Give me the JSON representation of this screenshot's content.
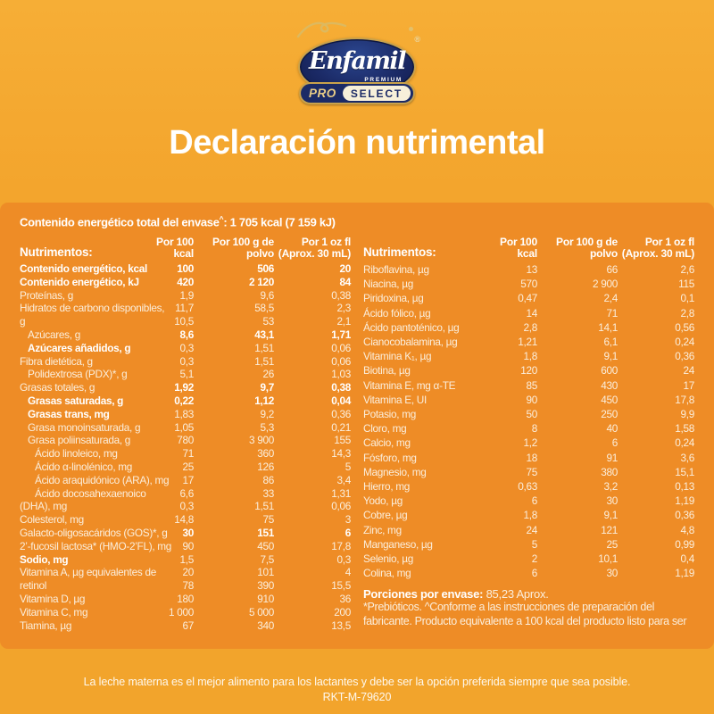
{
  "brand": {
    "name": "Enfamil",
    "registered": "®",
    "premium": "PREMIUM",
    "pro": "PRO",
    "select": "SELECT"
  },
  "title": "Declaración nutrimental",
  "energy": {
    "label": "Contenido energético total del envase",
    "sup": "^",
    "value": ": 1 705 kcal (7 159 kJ)"
  },
  "headers": {
    "nutrients": "Nutrimentos:",
    "col1": "Por 100 kcal",
    "col2_lines": [
      "Por 100 g de",
      "polvo"
    ],
    "col3_lines": [
      "Por 1 oz fl",
      "(Aprox. 30 mL)"
    ]
  },
  "left_table": {
    "rows": [
      {
        "label": "Contenido energético, kcal",
        "indent": 0,
        "bold_label": true,
        "bold_values": true,
        "values": [
          "100",
          "506",
          "20"
        ]
      },
      {
        "label": "Contenido energético, kJ",
        "indent": 0,
        "bold_label": true,
        "bold_values": true,
        "values": [
          "420",
          "2 120",
          "84"
        ]
      },
      {
        "label": "Proteínas, g",
        "indent": 0,
        "bold_label": false,
        "bold_values": false,
        "values": [
          "1,9",
          "9,6",
          "0,38"
        ]
      },
      {
        "label": "Hidratos de carbono disponibles,",
        "indent": 0,
        "bold_label": false,
        "bold_values": false,
        "values": [
          "11,7",
          "58,5",
          "2,3"
        ]
      },
      {
        "label": "g",
        "indent": 0,
        "bold_label": false,
        "bold_values": false,
        "values": [
          "10,5",
          "53",
          "2,1"
        ]
      },
      {
        "label": "Azúcares, g",
        "indent": 1,
        "bold_label": false,
        "bold_values": true,
        "values": [
          "8,6",
          "43,1",
          "1,71"
        ]
      },
      {
        "label": "Azúcares añadidos, g",
        "indent": 1,
        "bold_label": true,
        "bold_values": false,
        "values": [
          "0,3",
          "1,51",
          "0,06"
        ]
      },
      {
        "label": "Fibra dietética, g",
        "indent": 0,
        "bold_label": false,
        "bold_values": false,
        "values": [
          "0,3",
          "1,51",
          "0,06"
        ]
      },
      {
        "label": "Polidextrosa (PDX)*, g",
        "indent": 1,
        "bold_label": false,
        "bold_values": false,
        "values": [
          "5,1",
          "26",
          "1,03"
        ]
      },
      {
        "label": "Grasas totales, g",
        "indent": 0,
        "bold_label": false,
        "bold_values": true,
        "values": [
          "1,92",
          "9,7",
          "0,38"
        ]
      },
      {
        "label": "Grasas saturadas, g",
        "indent": 1,
        "bold_label": true,
        "bold_values": true,
        "values": [
          "0,22",
          "1,12",
          "0,04"
        ]
      },
      {
        "label": "Grasas trans, mg",
        "indent": 1,
        "bold_label": true,
        "bold_values": false,
        "values": [
          "1,83",
          "9,2",
          "0,36"
        ]
      },
      {
        "label": "Grasa monoinsaturada, g",
        "indent": 1,
        "bold_label": false,
        "bold_values": false,
        "values": [
          "1,05",
          "5,3",
          "0,21"
        ]
      },
      {
        "label": "Grasa poliinsaturada, g",
        "indent": 1,
        "bold_label": false,
        "bold_values": false,
        "values": [
          "780",
          "3 900",
          "155"
        ]
      },
      {
        "label": "Ácido linoleico, mg",
        "indent": 2,
        "bold_label": false,
        "bold_values": false,
        "values": [
          "71",
          "360",
          "14,3"
        ]
      },
      {
        "label": "Ácido α-linolénico, mg",
        "indent": 2,
        "bold_label": false,
        "bold_values": false,
        "values": [
          "25",
          "126",
          "5"
        ]
      },
      {
        "label": "Ácido araquidónico (ARA), mg",
        "indent": 2,
        "bold_label": false,
        "bold_values": false,
        "values": [
          "17",
          "86",
          "3,4"
        ]
      },
      {
        "label": "Ácido docosahexaenoico",
        "indent": 2,
        "bold_label": false,
        "bold_values": false,
        "values": [
          "6,6",
          "33",
          "1,31"
        ]
      },
      {
        "label": "(DHA), mg",
        "indent": 0,
        "bold_label": false,
        "bold_values": false,
        "values": [
          "0,3",
          "1,51",
          "0,06"
        ]
      },
      {
        "label": "Colesterol, mg",
        "indent": 0,
        "bold_label": false,
        "bold_values": false,
        "values": [
          "14,8",
          "75",
          "3"
        ]
      },
      {
        "label": "Galacto-oligosacáridos (GOS)*, g",
        "indent": 0,
        "bold_label": false,
        "bold_values": true,
        "values": [
          "30",
          "151",
          "6"
        ]
      },
      {
        "label": "2’-fucosil lactosa* (HMO-2’FL), mg",
        "indent": 0,
        "bold_label": false,
        "bold_values": false,
        "values": [
          "90",
          "450",
          "17,8"
        ]
      },
      {
        "label": "Sodio, mg",
        "indent": 0,
        "bold_label": true,
        "bold_values": false,
        "values": [
          "1,5",
          "7,5",
          "0,3"
        ]
      },
      {
        "label": "Vitamina A, µg equivalentes de",
        "indent": 0,
        "bold_label": false,
        "bold_values": false,
        "values": [
          "20",
          "101",
          "4"
        ]
      },
      {
        "label": "retinol",
        "indent": 0,
        "bold_label": false,
        "bold_values": false,
        "values": [
          "78",
          "390",
          "15,5"
        ]
      },
      {
        "label": "Vitamina D, µg",
        "indent": 0,
        "bold_label": false,
        "bold_values": false,
        "values": [
          "180",
          "910",
          "36"
        ]
      },
      {
        "label": "Vitamina C, mg",
        "indent": 0,
        "bold_label": false,
        "bold_values": false,
        "values": [
          "1 000",
          "5 000",
          "200"
        ]
      },
      {
        "label": "Tiamina, µg",
        "indent": 0,
        "bold_label": false,
        "bold_values": false,
        "values": [
          "67",
          "340",
          "13,5"
        ]
      }
    ]
  },
  "right_table": {
    "rows": [
      {
        "label": "Riboflavina, µg",
        "indent": 0,
        "bold_label": false,
        "bold_values": false,
        "values": [
          "13",
          "66",
          "2,6"
        ]
      },
      {
        "label": "Niacina, µg",
        "indent": 0,
        "bold_label": false,
        "bold_values": false,
        "values": [
          "570",
          "2 900",
          "115"
        ]
      },
      {
        "label": "Piridoxina, µg",
        "indent": 0,
        "bold_label": false,
        "bold_values": false,
        "values": [
          "0,47",
          "2,4",
          "0,1"
        ]
      },
      {
        "label": "Ácido fólico, µg",
        "indent": 0,
        "bold_label": false,
        "bold_values": false,
        "values": [
          "14",
          "71",
          "2,8"
        ]
      },
      {
        "label": "Ácido pantoténico, µg",
        "indent": 0,
        "bold_label": false,
        "bold_values": false,
        "values": [
          "2,8",
          "14,1",
          "0,56"
        ]
      },
      {
        "label": "Cianocobalamina, µg",
        "indent": 0,
        "bold_label": false,
        "bold_values": false,
        "values": [
          "1,21",
          "6,1",
          "0,24"
        ]
      },
      {
        "label": "Vitamina K₁, µg",
        "indent": 0,
        "bold_label": false,
        "bold_values": false,
        "values": [
          "1,8",
          "9,1",
          "0,36"
        ]
      },
      {
        "label": "Biotina, µg",
        "indent": 0,
        "bold_label": false,
        "bold_values": false,
        "values": [
          "120",
          "600",
          "24"
        ]
      },
      {
        "label": "Vitamina E, mg α-TE",
        "indent": 0,
        "bold_label": false,
        "bold_values": false,
        "values": [
          "85",
          "430",
          "17"
        ]
      },
      {
        "label": "Vitamina E, UI",
        "indent": 0,
        "bold_label": false,
        "bold_values": false,
        "values": [
          "90",
          "450",
          "17,8"
        ]
      },
      {
        "label": "Potasio, mg",
        "indent": 0,
        "bold_label": false,
        "bold_values": false,
        "values": [
          "50",
          "250",
          "9,9"
        ]
      },
      {
        "label": "Cloro, mg",
        "indent": 0,
        "bold_label": false,
        "bold_values": false,
        "values": [
          "8",
          "40",
          "1,58"
        ]
      },
      {
        "label": "Calcio, mg",
        "indent": 0,
        "bold_label": false,
        "bold_values": false,
        "values": [
          "1,2",
          "6",
          "0,24"
        ]
      },
      {
        "label": "Fósforo, mg",
        "indent": 0,
        "bold_label": false,
        "bold_values": false,
        "values": [
          "18",
          "91",
          "3,6"
        ]
      },
      {
        "label": "Magnesio, mg",
        "indent": 0,
        "bold_label": false,
        "bold_values": false,
        "values": [
          "75",
          "380",
          "15,1"
        ]
      },
      {
        "label": "Hierro, mg",
        "indent": 0,
        "bold_label": false,
        "bold_values": false,
        "values": [
          "0,63",
          "3,2",
          "0,13"
        ]
      },
      {
        "label": "Yodo, µg",
        "indent": 0,
        "bold_label": false,
        "bold_values": false,
        "values": [
          "6",
          "30",
          "1,19"
        ]
      },
      {
        "label": "Cobre, µg",
        "indent": 0,
        "bold_label": false,
        "bold_values": false,
        "values": [
          "1,8",
          "9,1",
          "0,36"
        ]
      },
      {
        "label": "Zinc, mg",
        "indent": 0,
        "bold_label": false,
        "bold_values": false,
        "values": [
          "24",
          "121",
          "4,8"
        ]
      },
      {
        "label": "Manganeso, µg",
        "indent": 0,
        "bold_label": false,
        "bold_values": false,
        "values": [
          "5",
          "25",
          "0,99"
        ]
      },
      {
        "label": "Selenio, µg",
        "indent": 0,
        "bold_label": false,
        "bold_values": false,
        "values": [
          "2",
          "10,1",
          "0,4"
        ]
      },
      {
        "label": "Colina, mg",
        "indent": 0,
        "bold_label": false,
        "bold_values": false,
        "values": [
          "6",
          "30",
          "1,19"
        ]
      }
    ]
  },
  "notes": {
    "servings_label": "Porciones por envase:",
    "servings_value": " 85,23 Aprox.",
    "note": "*Prebióticos. ^Conforme a las instrucciones de preparación del fabricante. Producto equivalente a 100 kcal del producto listo para ser"
  },
  "footer": {
    "line1": "La leche materna es el mejor alimento para los lactantes y debe ser la opción preferida siempre que sea posible.",
    "line2": "RKT-M-79620"
  },
  "colors": {
    "background_gold": "#F3A52D",
    "panel_orange": "#EE8C26",
    "navy": "#1B2A66",
    "logo_gold": "#C9A24B",
    "text_cream": "#FBEEDC",
    "text_white": "#FFFFFF"
  }
}
